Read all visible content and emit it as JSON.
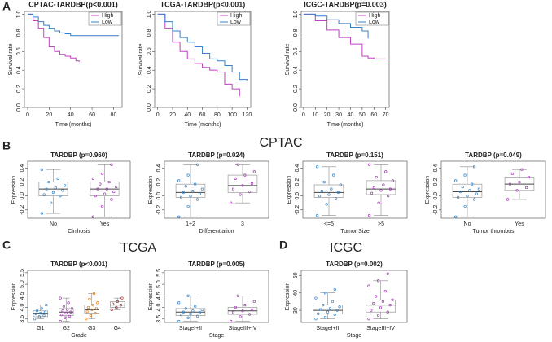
{
  "panel_labels": [
    "A",
    "B",
    "C",
    "D"
  ],
  "group_titles": [
    "CPTAC",
    "TCGA",
    "ICGC"
  ],
  "chart_data": [
    {
      "type": "km",
      "title": "CPTAC-TARDBP(p<0.001)",
      "x_label": "Time (months)",
      "y_label": "Survival rate",
      "x": [
        0,
        5,
        10,
        15,
        20,
        25,
        30,
        35,
        40,
        45,
        48,
        50,
        60,
        70,
        85
      ],
      "series": [
        {
          "name": "High",
          "color": "#c040c0",
          "values": [
            1,
            0.93,
            0.85,
            0.75,
            0.65,
            0.6,
            0.57,
            0.55,
            0.53,
            0.5,
            0.49,
            null,
            null,
            null,
            null
          ]
        },
        {
          "name": "Low",
          "color": "#3a7fc8",
          "values": [
            1,
            0.97,
            0.92,
            0.88,
            0.85,
            0.82,
            0.8,
            0.79,
            0.77,
            0.77,
            0.77,
            0.77,
            0.77,
            0.77,
            0.77
          ]
        }
      ],
      "xlim": [
        -3,
        88
      ],
      "xticks": [
        0,
        20,
        40,
        60,
        80
      ],
      "ylim": [
        0,
        1.03
      ],
      "yticks": [
        {
          "value": 0,
          "label": "0.0"
        },
        0.2,
        0.4,
        0.6,
        0.8,
        {
          "value": 1,
          "label": "1.0"
        }
      ],
      "legend": "top-right"
    },
    {
      "type": "km",
      "title": "TCGA-TARDBP(p<0.001)",
      "x_label": "Time (months)",
      "y_label": "Survival rate",
      "x": [
        0,
        10,
        20,
        30,
        40,
        50,
        60,
        70,
        80,
        90,
        100,
        110,
        120
      ],
      "series": [
        {
          "name": "High",
          "color": "#c040c0",
          "values": [
            1,
            0.85,
            0.7,
            0.6,
            0.52,
            0.47,
            0.43,
            0.4,
            0.38,
            0.25,
            0.2,
            0.12,
            null
          ]
        },
        {
          "name": "Low",
          "color": "#3a7fc8",
          "values": [
            1,
            0.92,
            0.82,
            0.75,
            0.7,
            0.65,
            0.58,
            0.52,
            0.5,
            0.45,
            0.38,
            0.3,
            0.29
          ]
        }
      ],
      "xlim": [
        -4,
        125
      ],
      "xticks": [
        0,
        20,
        40,
        60,
        80,
        100,
        120
      ],
      "ylim": [
        0,
        1.03
      ],
      "yticks": [
        {
          "value": 0,
          "label": "0.0"
        },
        0.2,
        0.4,
        0.6,
        0.8,
        {
          "value": 1,
          "label": "1.0"
        }
      ],
      "legend": "top-right"
    },
    {
      "type": "km",
      "title": "ICGC-TARDBP(p=0.003)",
      "x_label": "Time (months)",
      "y_label": "Survival rate",
      "x": [
        0,
        10,
        20,
        30,
        40,
        50,
        55,
        60,
        70
      ],
      "series": [
        {
          "name": "High",
          "color": "#c040c0",
          "values": [
            1,
            0.93,
            0.83,
            0.75,
            0.68,
            0.55,
            0.53,
            0.52,
            0.52
          ]
        },
        {
          "name": "Low",
          "color": "#3a7fc8",
          "values": [
            1,
            0.98,
            0.94,
            0.9,
            0.86,
            0.82,
            0.74,
            null,
            null
          ]
        }
      ],
      "xlim": [
        -2,
        73
      ],
      "xticks": [
        0,
        10,
        20,
        30,
        40,
        50,
        60,
        70
      ],
      "ylim": [
        0,
        1.03
      ],
      "yticks": [
        {
          "value": 0,
          "label": "0.0"
        },
        0.2,
        0.4,
        0.6,
        0.8,
        {
          "value": 1,
          "label": "1.0"
        }
      ],
      "legend": "top-right"
    },
    {
      "type": "box",
      "title": "TARDBP (p=0.960)",
      "x_label": "Cirrhosis",
      "y_label": "Expression",
      "categories": [
        "No",
        "Yes"
      ],
      "colors": [
        "#3a86c8",
        "#a040b0"
      ],
      "boxes": [
        [
          -0.25,
          0,
          0.1,
          0.2,
          0.38
        ],
        [
          -0.3,
          0,
          0.1,
          0.2,
          0.45
        ]
      ],
      "points": [
        [
          -0.25,
          -0.1,
          0,
          0.02,
          0.05,
          0.08,
          0.1,
          0.12,
          0.15,
          0.2,
          0.25,
          0.38
        ],
        [
          -0.3,
          -0.15,
          -0.05,
          0,
          0.03,
          0.06,
          0.1,
          0.1,
          0.13,
          0.17,
          0.2,
          0.25,
          0.32,
          0.45
        ]
      ],
      "ylim": [
        -0.32,
        0.5
      ],
      "yticks": [
        -0.2,
        {
          "value": 0,
          "label": "0.0"
        },
        0.2,
        0.4
      ]
    },
    {
      "type": "box",
      "title": "TARDBP (p=0.024)",
      "x_label": "Differentiation",
      "y_label": "Expression",
      "categories": [
        "1+2",
        "3"
      ],
      "colors": [
        "#3a86c8",
        "#a040b0"
      ],
      "boxes": [
        [
          -0.3,
          -0.02,
          0.05,
          0.17,
          0.45
        ],
        [
          -0.1,
          0.05,
          0.15,
          0.3,
          0.45
        ]
      ],
      "points": [
        [
          -0.3,
          -0.15,
          -0.05,
          -0.02,
          0,
          0.03,
          0.05,
          0.07,
          0.1,
          0.14,
          0.17,
          0.22,
          0.3,
          0.45
        ],
        [
          -0.1,
          0.02,
          0.06,
          0.1,
          0.15,
          0.18,
          0.25,
          0.3,
          0.35,
          0.45
        ]
      ],
      "ylim": [
        -0.32,
        0.5
      ],
      "yticks": [
        -0.2,
        {
          "value": 0,
          "label": "0.0"
        },
        0.2,
        0.4
      ]
    },
    {
      "type": "box",
      "title": "TARDBP (p=0.151)",
      "x_label": "Tumor Size",
      "y_label": "Expression",
      "categories": [
        "<=5",
        ">5"
      ],
      "colors": [
        "#3a86c8",
        "#a040b0"
      ],
      "boxes": [
        [
          -0.28,
          -0.02,
          0.05,
          0.16,
          0.42
        ],
        [
          -0.28,
          0.02,
          0.1,
          0.22,
          0.45
        ]
      ],
      "points": [
        [
          -0.28,
          -0.12,
          -0.04,
          0,
          0.02,
          0.05,
          0.07,
          0.1,
          0.16,
          0.2,
          0.3,
          0.42
        ],
        [
          -0.28,
          -0.1,
          0,
          0.04,
          0.08,
          0.1,
          0.12,
          0.16,
          0.22,
          0.27,
          0.35,
          0.45
        ]
      ],
      "ylim": [
        -0.32,
        0.5
      ],
      "yticks": [
        -0.2,
        {
          "value": 0,
          "label": "0.0"
        },
        0.2,
        0.4
      ]
    },
    {
      "type": "box",
      "title": "TARDBP (p=0.049)",
      "x_label": "Tumor thrombus",
      "y_label": "Expression",
      "categories": [
        "No",
        "Yes"
      ],
      "colors": [
        "#3a86c8",
        "#a040b0"
      ],
      "boxes": [
        [
          -0.3,
          -0.02,
          0.06,
          0.17,
          0.42
        ],
        [
          -0.05,
          0.08,
          0.17,
          0.27,
          0.38
        ]
      ],
      "points": [
        [
          -0.3,
          -0.15,
          -0.05,
          -0.02,
          0,
          0.03,
          0.06,
          0.08,
          0.1,
          0.13,
          0.17,
          0.22,
          0.3,
          0.42
        ],
        [
          -0.05,
          0.08,
          0.12,
          0.17,
          0.2,
          0.27,
          0.32,
          0.38
        ]
      ],
      "ylim": [
        -0.32,
        0.5
      ],
      "yticks": [
        -0.2,
        {
          "value": 0,
          "label": "0.0"
        },
        0.2,
        0.4
      ]
    },
    {
      "type": "box",
      "title": "TARDBP (p<0.001)",
      "x_label": "Grade",
      "y_label": "Expression",
      "categories": [
        "G1",
        "G2",
        "G3",
        "G4"
      ],
      "colors": [
        "#3a86c8",
        "#a040b0",
        "#e08020",
        "#a03030"
      ],
      "boxes": [
        [
          3.5,
          3.6,
          3.75,
          3.85,
          4.1
        ],
        [
          3.4,
          3.65,
          3.8,
          3.95,
          4.4
        ],
        [
          3.5,
          3.75,
          3.9,
          4.1,
          4.6
        ],
        [
          3.9,
          4,
          4.1,
          4.25,
          4.4
        ]
      ],
      "points": [
        [
          3.5,
          3.6,
          3.65,
          3.72,
          3.75,
          3.8,
          3.85,
          3.95,
          4.1
        ],
        [
          3.4,
          3.55,
          3.62,
          3.68,
          3.75,
          3.8,
          3.85,
          3.9,
          3.95,
          4.05,
          4.2,
          4.4
        ],
        [
          3.5,
          3.65,
          3.75,
          3.82,
          3.9,
          3.95,
          4,
          4.1,
          4.2,
          4.35,
          4.6
        ],
        [
          3.9,
          4,
          4.1,
          4.15,
          4.25,
          4.4
        ]
      ],
      "ylim": [
        3.35,
        5.6
      ],
      "yticks": [
        3.5,
        {
          "value": 4,
          "label": "4.0"
        },
        4.5,
        {
          "value": 5,
          "label": "5.0"
        },
        5.5
      ]
    },
    {
      "type": "box",
      "title": "TARDBP (p=0.005)",
      "x_label": "Stage",
      "y_label": "Expression",
      "categories": [
        "StageI+II",
        "StageIII+IV"
      ],
      "colors": [
        "#3a86c8",
        "#a040b0"
      ],
      "boxes": [
        [
          3.4,
          3.65,
          3.8,
          3.95,
          4.5
        ],
        [
          3.4,
          3.7,
          3.85,
          4,
          4.5
        ]
      ],
      "points": [
        [
          3.4,
          3.55,
          3.62,
          3.68,
          3.72,
          3.78,
          3.8,
          3.85,
          3.9,
          3.95,
          4.05,
          4.2,
          4.5
        ],
        [
          3.4,
          3.6,
          3.7,
          3.78,
          3.85,
          3.9,
          4,
          4.1,
          4.25,
          4.5
        ]
      ],
      "ylim": [
        3.35,
        5.6
      ],
      "yticks": [
        3.5,
        {
          "value": 4,
          "label": "4.0"
        },
        4.5,
        {
          "value": 5,
          "label": "5.0"
        },
        5.5
      ]
    },
    {
      "type": "box",
      "title": "TARDBP (p=0.002)",
      "x_label": "Stage",
      "y_label": "Expression",
      "categories": [
        "StageI+II",
        "StageIII+IV"
      ],
      "colors": [
        "#3a86c8",
        "#a040b0"
      ],
      "boxes": [
        [
          25,
          28,
          30,
          33,
          40
        ],
        [
          25,
          29,
          33,
          36,
          47
        ]
      ],
      "points": [
        [
          25,
          26,
          27.5,
          28,
          29,
          30,
          30.5,
          31,
          32,
          33,
          35,
          37,
          40,
          42
        ],
        [
          25,
          27,
          29,
          30,
          31.5,
          33,
          34,
          35,
          36,
          38,
          41,
          44,
          47,
          51
        ]
      ],
      "ylim": [
        23,
        53
      ],
      "yticks": [
        30,
        40,
        50
      ]
    }
  ]
}
